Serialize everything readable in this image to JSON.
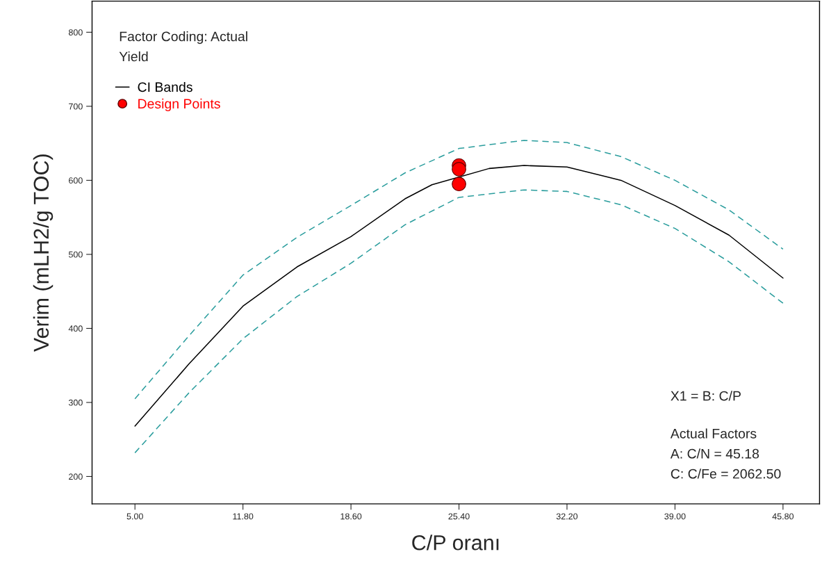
{
  "chart_data": {
    "type": "line",
    "xlabel": "C/P oranı",
    "ylabel": "Verim (mLH2/g TOC)",
    "annotations": [
      "Factor Coding: Actual",
      "Yield",
      "X1 = B: C/P",
      "Actual Factors",
      "A: C/N = 45.18",
      "C: C/Fe = 2062.50"
    ],
    "xlim": [
      2.3,
      48.1
    ],
    "ylim": [
      163,
      842
    ],
    "xticks": [
      {
        "value": 5,
        "label": "5.00"
      },
      {
        "value": 11.8,
        "label": "11.80"
      },
      {
        "value": 18.6,
        "label": "18.60"
      },
      {
        "value": 25.4,
        "label": "25.40"
      },
      {
        "value": 32.2,
        "label": "32.20"
      },
      {
        "value": 39,
        "label": "39.00"
      },
      {
        "value": 45.8,
        "label": "45.80"
      }
    ],
    "yticks": [
      200,
      300,
      400,
      500,
      600,
      700,
      800
    ],
    "grid": false,
    "legend": "top left",
    "series": [
      {
        "name": "CI Bands",
        "color": "#000000",
        "line_style": "solid",
        "x": [
          5,
          8.4,
          11.8,
          15.2,
          18.6,
          22,
          23.7,
          27.3,
          29.5,
          32.2,
          35.6,
          39,
          42.4,
          45.8
        ],
        "values": [
          268,
          352,
          430,
          483,
          524,
          575,
          594,
          616,
          620,
          618,
          600,
          566,
          526,
          468
        ]
      },
      {
        "color": "#2a9d9d",
        "line_style": "dashed",
        "x": [
          5,
          8.4,
          11.8,
          15.2,
          18.6,
          22,
          25.4,
          29.5,
          32.2,
          35.6,
          39,
          42.4,
          45.8
        ],
        "values": [
          305,
          390,
          472,
          523,
          566,
          610,
          643,
          654,
          651,
          632,
          600,
          560,
          507
        ]
      },
      {
        "color": "#2a9d9d",
        "line_style": "dashed",
        "x": [
          5,
          8.4,
          11.8,
          15.2,
          18.6,
          22,
          25.4,
          29.5,
          32.2,
          35.6,
          39,
          42.4,
          45.8
        ],
        "values": [
          232,
          313,
          386,
          443,
          488,
          540,
          577,
          587,
          585,
          567,
          535,
          490,
          434
        ]
      },
      {
        "name": "Design Points",
        "type": "scatter",
        "color": "#ff0000",
        "marker": "circle",
        "x": [
          25.4,
          25.4,
          25.4
        ],
        "values": [
          620,
          615,
          595
        ]
      }
    ]
  }
}
